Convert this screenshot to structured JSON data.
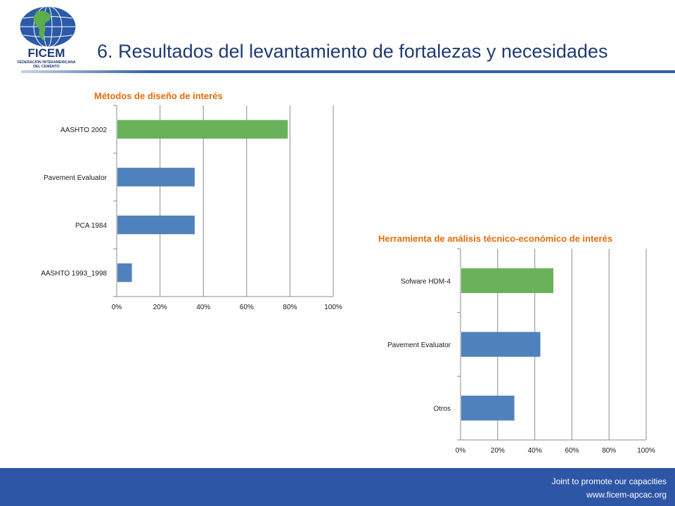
{
  "header": {
    "title": "6. Resultados del levantamiento de fortalezas y necesidades",
    "logo": {
      "icon": "globe-icon",
      "name": "FICEM",
      "subtitle_line1": "FEDERACIÓN INTERAMERICANA",
      "subtitle_line2": "DEL CEMENTO"
    }
  },
  "colors": {
    "title": "#1f3b73",
    "chart_title": "#e36c09",
    "bar_blue": "#4f81bd",
    "bar_green": "#6ab25a",
    "footer": "#2e56a6"
  },
  "chart_data": [
    {
      "type": "bar",
      "orientation": "horizontal",
      "title": "Métodos de diseño de interés",
      "categories": [
        "AASHTO 2002",
        "Pavement Evaluator",
        "PCA 1984",
        "AASHTO 1993_1998"
      ],
      "values": [
        0.79,
        0.36,
        0.36,
        0.07
      ],
      "highlight": [
        true,
        false,
        false,
        false
      ],
      "xlim": [
        0,
        1
      ],
      "ticks": [
        "0%",
        "20%",
        "40%",
        "60%",
        "80%",
        "100%"
      ],
      "grid": true
    },
    {
      "type": "bar",
      "orientation": "horizontal",
      "title": "Herramienta de análisis técnico-económico  de interés",
      "categories": [
        "Sofware HDM-4",
        "Pavement Evaluator",
        "Otros"
      ],
      "values": [
        0.5,
        0.43,
        0.29
      ],
      "highlight": [
        true,
        false,
        false
      ],
      "xlim": [
        0,
        1
      ],
      "ticks": [
        "0%",
        "20%",
        "40%",
        "60%",
        "80%",
        "100%"
      ],
      "grid": true
    }
  ],
  "footer": {
    "line1": "Joint  to promote our capacities",
    "line2": "www.ficem-apcac.org"
  }
}
